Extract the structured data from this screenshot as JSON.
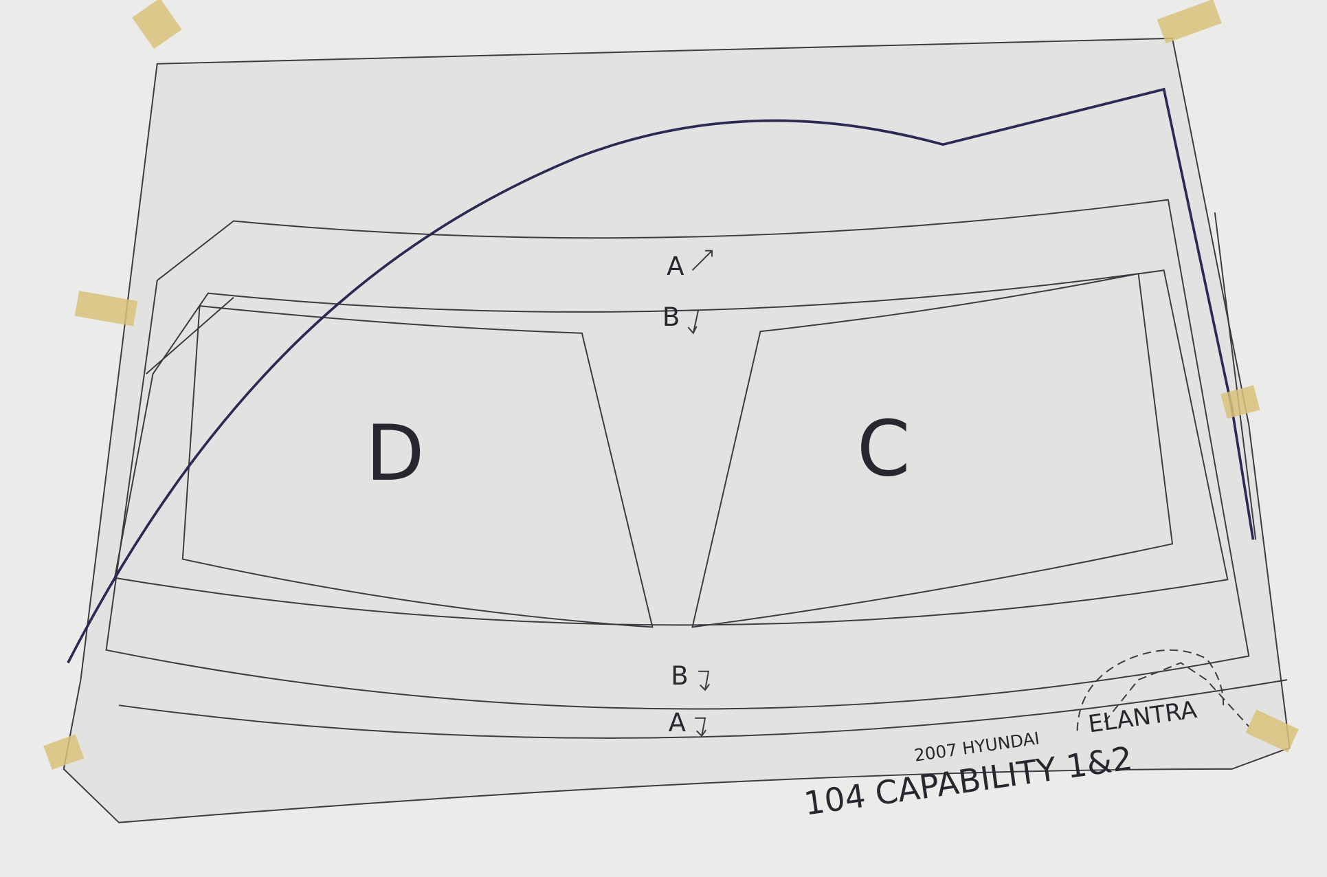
{
  "labels": {
    "top_a": "A",
    "top_b": "B",
    "left_region": "D",
    "right_region": "C",
    "bottom_b": "B",
    "bottom_a": "A"
  },
  "caption": {
    "year_make": "2007 HYUNDAI",
    "model": "ELANTRA",
    "title": "104 CAPABILITY 1&2"
  }
}
